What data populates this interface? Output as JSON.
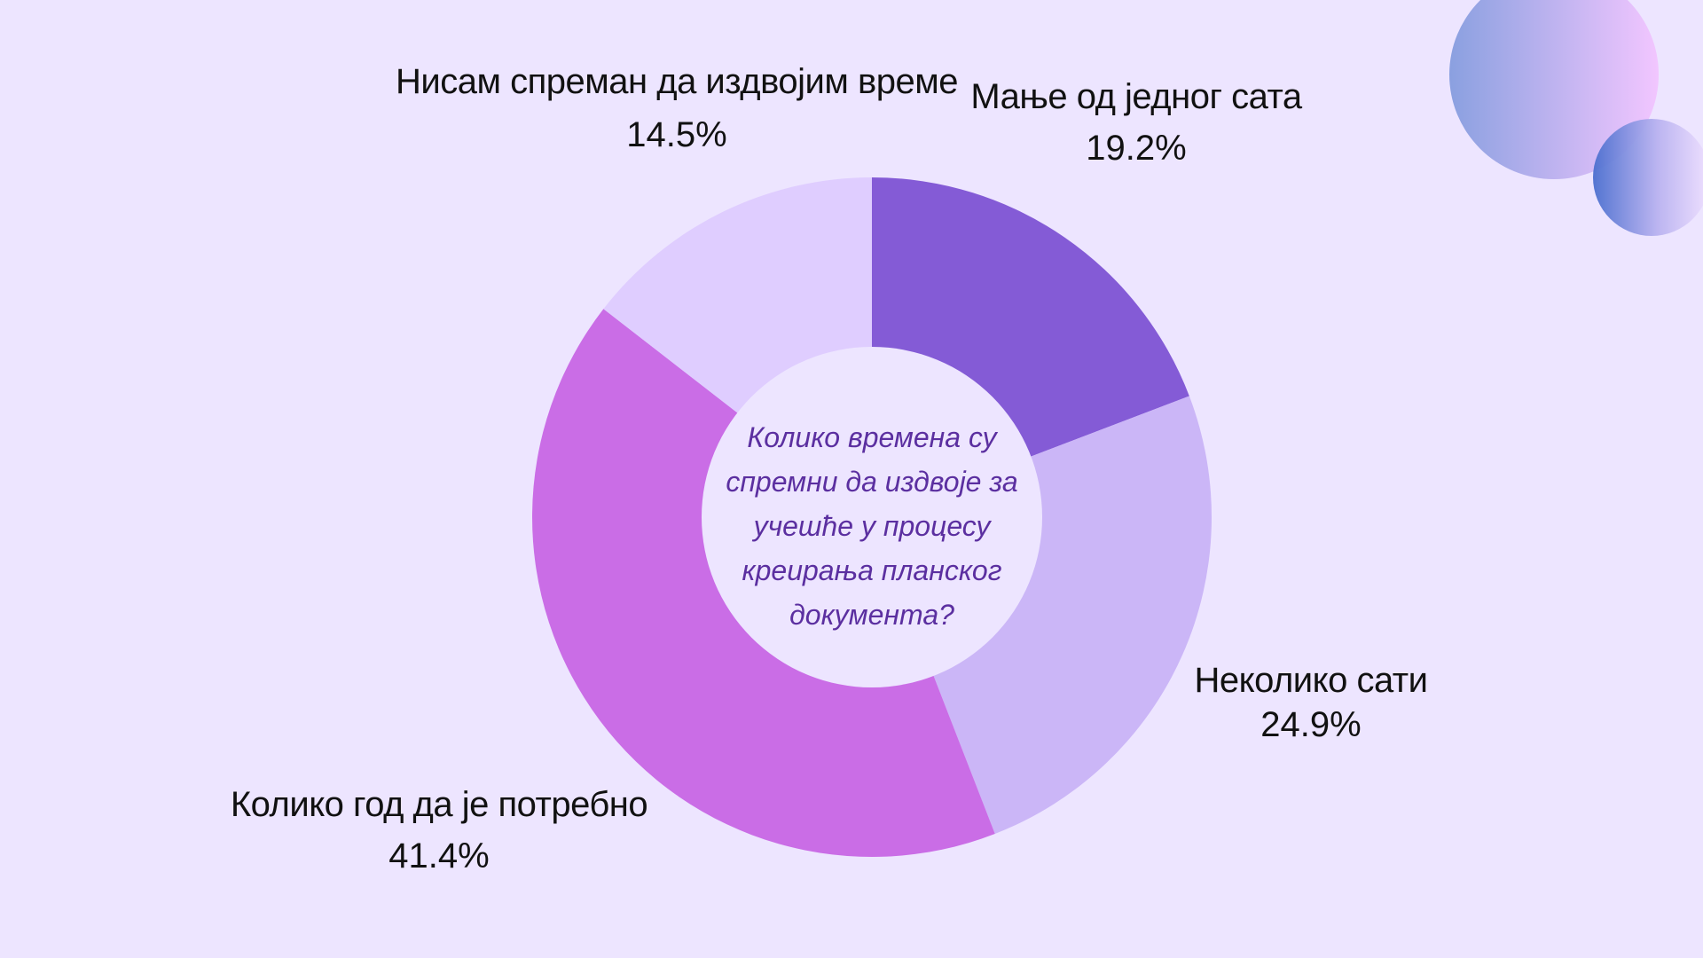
{
  "chart_data": {
    "type": "pie",
    "donut": true,
    "center_text": "Колико времена су спремни да издвоје за учешће у процесу креирања планског документа?",
    "slices": [
      {
        "label": "Мање од једног сата",
        "value": 19.2,
        "value_label": "19.2%",
        "color": "#845bd6"
      },
      {
        "label": "Неколико сати",
        "value": 24.9,
        "value_label": "24.9%",
        "color": "#cbb6f7"
      },
      {
        "label": "Колико год да је потребно",
        "value": 41.4,
        "value_label": "41.4%",
        "color": "#ca6de6"
      },
      {
        "label": "Нисам спреман да издвојим време",
        "value": 14.5,
        "value_label": "14.5%",
        "color": "#dfcdff"
      }
    ],
    "start_angle_deg": 0,
    "direction": "clockwise",
    "legend": "none"
  },
  "theme": {
    "background": "#ede5ff",
    "center_fill": "#ede5ff",
    "center_text_color": "#5b2fa0",
    "label_color": "#111111"
  }
}
